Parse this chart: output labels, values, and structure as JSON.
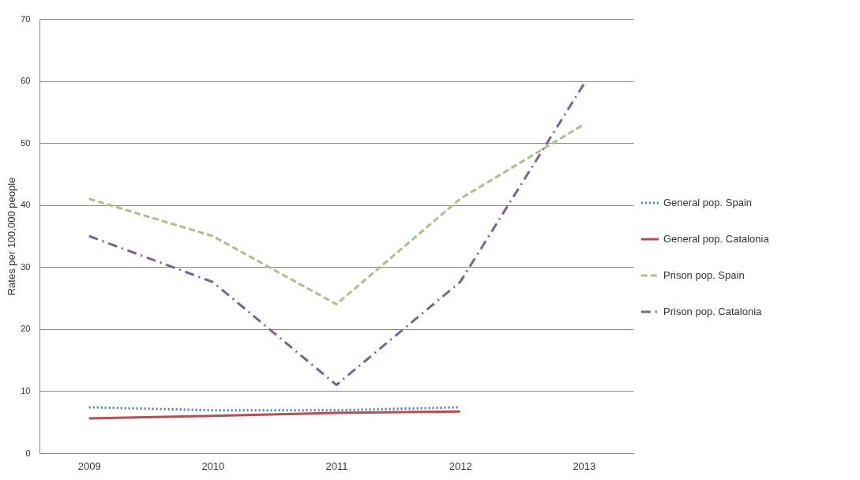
{
  "chart_data": {
    "type": "line",
    "ylabel": "Rates per 100,000 people",
    "categories": [
      "2009",
      "2010",
      "2011",
      "2012",
      "2013"
    ],
    "series": [
      {
        "name": "General pop. Spain",
        "color": "#4a7ebb",
        "line_style": "dotted",
        "values": [
          7.4,
          6.9,
          6.9,
          7.4,
          null
        ]
      },
      {
        "name": "General pop. Catalonia",
        "color": "#be4b48",
        "line_style": "solid",
        "values": [
          5.6,
          6.0,
          6.5,
          6.7,
          null
        ]
      },
      {
        "name": "Prison pop. Spain",
        "color": "#a9c47f",
        "line_style": "dashed",
        "values": [
          41,
          35,
          24,
          41,
          53
        ]
      },
      {
        "name": "Prison pop. Catalonia",
        "color": "#7d5fa0",
        "line_style": "dashdot",
        "values": [
          35,
          27.6,
          11,
          27.6,
          59.5
        ]
      }
    ],
    "ylim": [
      0,
      70
    ],
    "yticks": [
      0,
      10,
      20,
      30,
      40,
      50,
      60,
      70
    ],
    "grid": "y",
    "legend": "right",
    "marker": "none"
  }
}
